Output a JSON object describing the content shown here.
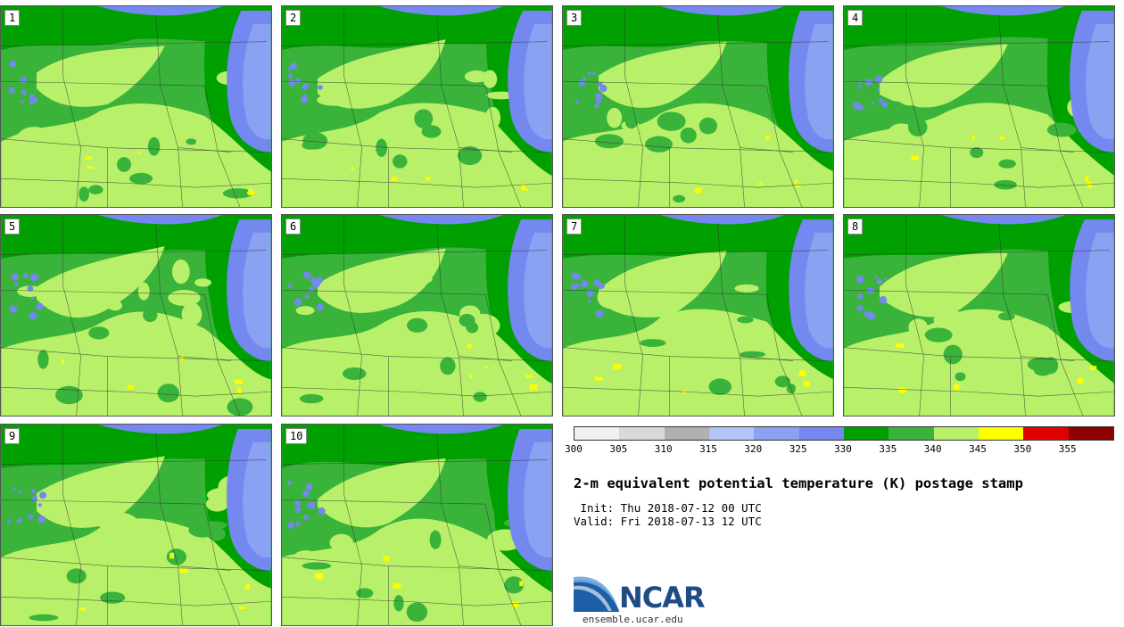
{
  "members": [
    {
      "label": "1"
    },
    {
      "label": "2"
    },
    {
      "label": "3"
    },
    {
      "label": "4"
    },
    {
      "label": "5"
    },
    {
      "label": "6"
    },
    {
      "label": "7"
    },
    {
      "label": "8"
    },
    {
      "label": "9"
    },
    {
      "label": "10"
    }
  ],
  "colorbar": {
    "colors": [
      "#f0f0f0",
      "#d8d8d8",
      "#b0b0b0",
      "#b4c4f8",
      "#8aa2f2",
      "#7488f0",
      "#00a000",
      "#3ab33a",
      "#b8f06a",
      "#ffff00",
      "#e00000",
      "#8b0000"
    ],
    "tick_labels": [
      "300",
      "305",
      "310",
      "315",
      "320",
      "325",
      "330",
      "335",
      "340",
      "345",
      "350",
      "355"
    ]
  },
  "title": "2-m equivalent potential temperature (K) postage stamp",
  "init": " Init: Thu 2018-07-12 00 UTC",
  "valid": "Valid: Fri 2018-07-13 12 UTC",
  "logo": {
    "text": "NCAR",
    "url": "ensemble.ucar.edu"
  },
  "map_colors": {
    "dark_green": "#00a000",
    "green": "#3ab33a",
    "light_green": "#b8f06a",
    "yellow": "#ffff00",
    "blue": "#7488f0",
    "light_blue": "#8aa2f2",
    "border": "#333333"
  }
}
